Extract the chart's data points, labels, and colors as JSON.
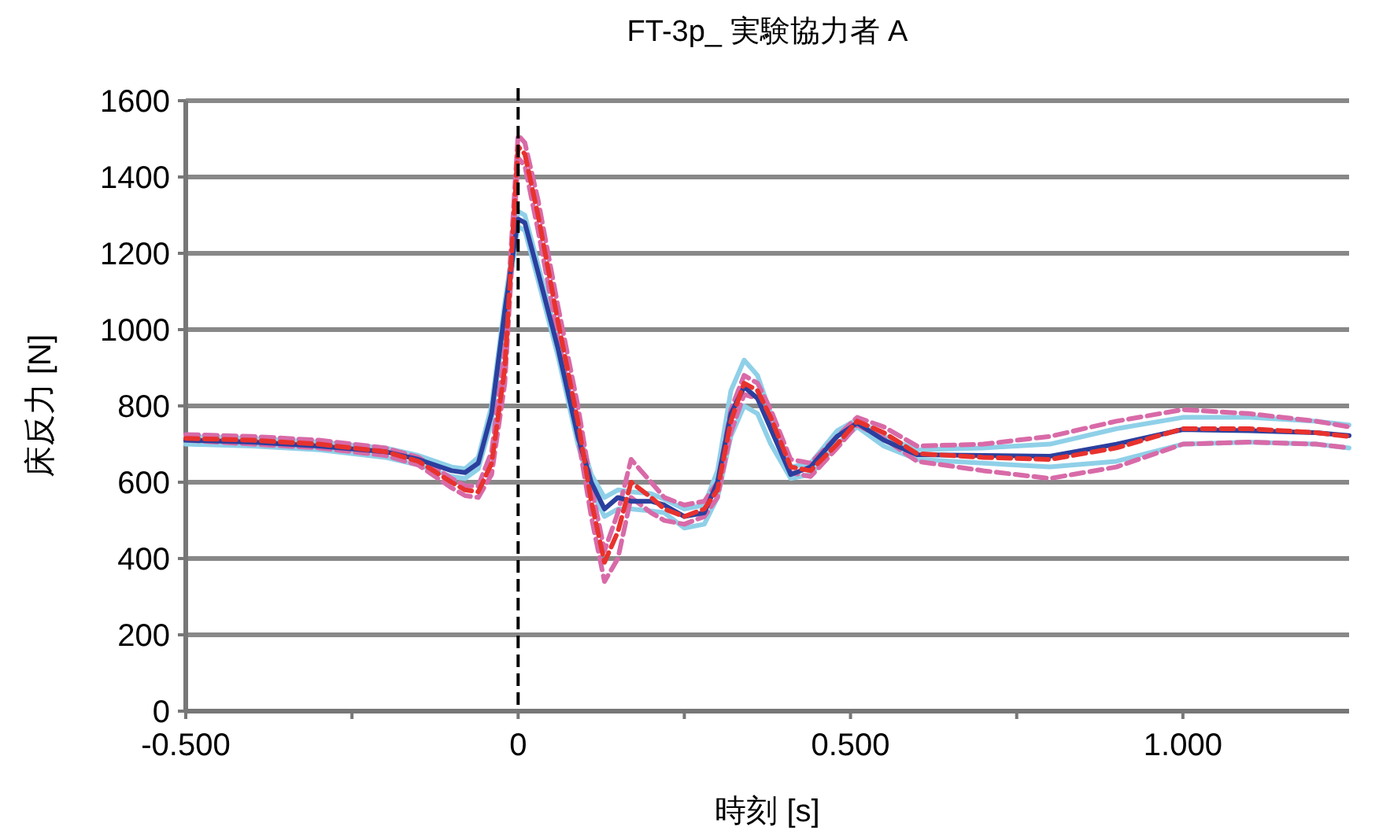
{
  "chart_data": {
    "type": "line",
    "title": "FT-3p_ 実験協力者 A",
    "xlabel": "時刻 [s]",
    "ylabel": "床反力 [N]",
    "x": [
      -0.5,
      -0.4,
      -0.3,
      -0.2,
      -0.15,
      -0.1,
      -0.08,
      -0.06,
      -0.04,
      -0.02,
      0,
      0.01,
      0.03,
      0.06,
      0.09,
      0.11,
      0.13,
      0.15,
      0.17,
      0.2,
      0.22,
      0.25,
      0.28,
      0.3,
      0.32,
      0.34,
      0.36,
      0.38,
      0.41,
      0.44,
      0.48,
      0.51,
      0.55,
      0.6,
      0.7,
      0.8,
      0.9,
      1.0,
      1.1,
      1.2,
      1.25
    ],
    "series": [
      {
        "color": "#8fd0e8",
        "line_style": "solid",
        "values": [
          720,
          715,
          705,
          690,
          670,
          640,
          635,
          665,
          800,
          1070,
          1310,
          1300,
          1170,
          970,
          740,
          620,
          560,
          580,
          575,
          570,
          555,
          530,
          540,
          630,
          840,
          920,
          880,
          780,
          640,
          650,
          735,
          765,
          720,
          685,
          690,
          700,
          740,
          770,
          770,
          760,
          750
        ]
      },
      {
        "color": "#8fd0e8",
        "line_style": "solid",
        "values": [
          700,
          695,
          685,
          665,
          645,
          615,
          610,
          635,
          760,
          1030,
          1270,
          1260,
          1130,
          930,
          700,
          580,
          510,
          530,
          530,
          525,
          520,
          480,
          490,
          560,
          720,
          800,
          780,
          700,
          610,
          620,
          700,
          745,
          695,
          660,
          650,
          640,
          655,
          700,
          705,
          700,
          690
        ]
      },
      {
        "color": "#d86aa8",
        "line_style": "dashed",
        "values": [
          725,
          720,
          710,
          690,
          665,
          610,
          590,
          590,
          680,
          950,
          1510,
          1490,
          1340,
          1060,
          800,
          590,
          420,
          520,
          660,
          600,
          560,
          540,
          550,
          600,
          790,
          880,
          860,
          790,
          660,
          650,
          720,
          770,
          745,
          695,
          700,
          720,
          760,
          790,
          780,
          760,
          745
        ]
      },
      {
        "color": "#d86aa8",
        "line_style": "dashed",
        "values": [
          710,
          700,
          690,
          670,
          645,
          585,
          565,
          560,
          620,
          860,
          1450,
          1430,
          1260,
          980,
          720,
          510,
          340,
          400,
          560,
          520,
          500,
          490,
          510,
          560,
          730,
          830,
          820,
          750,
          625,
          615,
          690,
          750,
          715,
          655,
          630,
          610,
          640,
          700,
          705,
          700,
          690
        ]
      },
      {
        "color": "#2b3f9e",
        "line_style": "solid",
        "values": [
          710,
          705,
          695,
          680,
          660,
          630,
          625,
          650,
          780,
          1050,
          1290,
          1280,
          1150,
          950,
          720,
          600,
          530,
          560,
          550,
          550,
          540,
          510,
          520,
          600,
          780,
          850,
          820,
          740,
          620,
          640,
          720,
          755,
          710,
          672,
          670,
          668,
          700,
          738,
          735,
          730,
          722
        ]
      },
      {
        "color": "#e8322e",
        "line_style": "dashed",
        "values": [
          715,
          710,
          700,
          680,
          655,
          600,
          580,
          575,
          650,
          900,
          1480,
          1460,
          1300,
          1020,
          760,
          550,
          390,
          470,
          600,
          560,
          530,
          510,
          530,
          580,
          760,
          860,
          840,
          770,
          640,
          630,
          700,
          760,
          730,
          675,
          665,
          660,
          690,
          740,
          740,
          730,
          720
        ]
      }
    ],
    "xlim": [
      -0.5,
      1.25
    ],
    "ylim": [
      0,
      1600
    ],
    "xticks": [
      {
        "value": -0.5,
        "label": "-0.500"
      },
      {
        "value": -0.25,
        "label": null
      },
      0,
      {
        "value": 0.25,
        "label": null
      },
      {
        "value": 0.5,
        "label": "0.500"
      },
      {
        "value": 0.75,
        "label": null
      },
      {
        "value": 1.0,
        "label": "1.000"
      }
    ],
    "yticks": [
      0,
      200,
      400,
      600,
      800,
      1000,
      1200,
      1400,
      1600
    ],
    "grid": "y",
    "marker": "none",
    "ref_lines": [
      {
        "axis": "x",
        "value": 0,
        "color": "#000000",
        "line_style": "dashed"
      }
    ]
  }
}
